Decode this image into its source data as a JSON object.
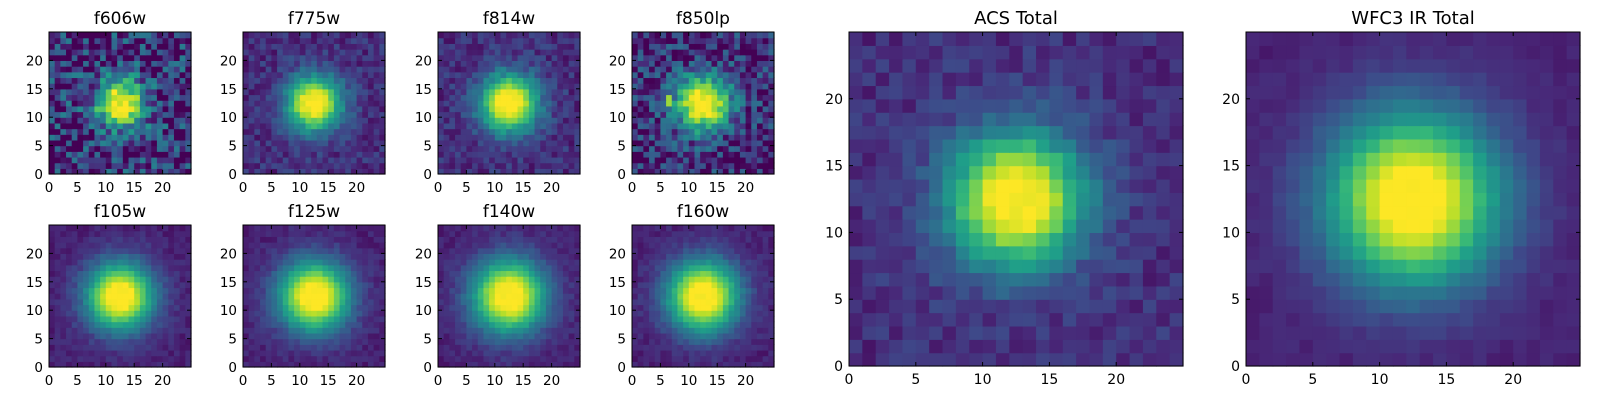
{
  "chart_data": [
    {
      "type": "heatmap",
      "title": "f606w",
      "grid": false,
      "xlim": [
        0,
        25
      ],
      "ylim": [
        0,
        25
      ],
      "xticks": [
        0,
        5,
        10,
        15,
        20
      ],
      "yticks": [
        0,
        5,
        10,
        15,
        20
      ],
      "source": {
        "center": [
          12,
          12
        ],
        "sigma": 3.0,
        "noise": 0.3,
        "background": 0.12
      }
    },
    {
      "type": "heatmap",
      "title": "f775w",
      "grid": false,
      "xlim": [
        0,
        25
      ],
      "ylim": [
        0,
        25
      ],
      "xticks": [
        0,
        5,
        10,
        15,
        20
      ],
      "yticks": [
        0,
        5,
        10,
        15,
        20
      ],
      "source": {
        "center": [
          12,
          12
        ],
        "sigma": 3.4,
        "noise": 0.1,
        "background": 0.12
      }
    },
    {
      "type": "heatmap",
      "title": "f814w",
      "grid": false,
      "xlim": [
        0,
        25
      ],
      "ylim": [
        0,
        25
      ],
      "xticks": [
        0,
        5,
        10,
        15,
        20
      ],
      "yticks": [
        0,
        5,
        10,
        15,
        20
      ],
      "source": {
        "center": [
          12,
          12
        ],
        "sigma": 3.6,
        "noise": 0.1,
        "background": 0.12
      }
    },
    {
      "type": "heatmap",
      "title": "f850lp",
      "grid": false,
      "xlim": [
        0,
        25
      ],
      "ylim": [
        0,
        25
      ],
      "xticks": [
        0,
        5,
        10,
        15,
        20
      ],
      "yticks": [
        0,
        5,
        10,
        15,
        20
      ],
      "source": {
        "center": [
          12,
          12
        ],
        "sigma": 3.4,
        "noise": 0.22,
        "background": 0.12
      },
      "spot": {
        "x": 6,
        "y": 12,
        "amplitude": 0.85
      }
    },
    {
      "type": "heatmap",
      "title": "f105w",
      "grid": false,
      "xlim": [
        0,
        25
      ],
      "ylim": [
        0,
        25
      ],
      "xticks": [
        0,
        5,
        10,
        15,
        20
      ],
      "yticks": [
        0,
        5,
        10,
        15,
        20
      ],
      "source": {
        "center": [
          12,
          12
        ],
        "sigma": 4.2,
        "noise": 0.05,
        "background": 0.08
      }
    },
    {
      "type": "heatmap",
      "title": "f125w",
      "grid": false,
      "xlim": [
        0,
        25
      ],
      "ylim": [
        0,
        25
      ],
      "xticks": [
        0,
        5,
        10,
        15,
        20
      ],
      "yticks": [
        0,
        5,
        10,
        15,
        20
      ],
      "source": {
        "center": [
          12,
          12
        ],
        "sigma": 4.4,
        "noise": 0.05,
        "background": 0.08
      }
    },
    {
      "type": "heatmap",
      "title": "f140w",
      "grid": false,
      "xlim": [
        0,
        25
      ],
      "ylim": [
        0,
        25
      ],
      "xticks": [
        0,
        5,
        10,
        15,
        20
      ],
      "yticks": [
        0,
        5,
        10,
        15,
        20
      ],
      "source": {
        "center": [
          12,
          12
        ],
        "sigma": 4.6,
        "noise": 0.05,
        "background": 0.08
      }
    },
    {
      "type": "heatmap",
      "title": "f160w",
      "grid": false,
      "xlim": [
        0,
        25
      ],
      "ylim": [
        0,
        25
      ],
      "xticks": [
        0,
        5,
        10,
        15,
        20
      ],
      "yticks": [
        0,
        5,
        10,
        15,
        20
      ],
      "source": {
        "center": [
          12,
          12
        ],
        "sigma": 4.5,
        "noise": 0.05,
        "background": 0.08
      }
    },
    {
      "type": "heatmap",
      "title": "ACS Total",
      "grid": false,
      "xlim": [
        0,
        25
      ],
      "ylim": [
        0,
        25
      ],
      "xticks": [
        0,
        5,
        10,
        15,
        20
      ],
      "yticks": [
        0,
        5,
        10,
        15,
        20
      ],
      "source": {
        "center": [
          12,
          12
        ],
        "sigma": 3.6,
        "noise": 0.08,
        "background": 0.12
      },
      "spot": {
        "x": 6,
        "y": 12,
        "amplitude": 0.28
      }
    },
    {
      "type": "heatmap",
      "title": "WFC3 IR Total",
      "grid": false,
      "xlim": [
        0,
        25
      ],
      "ylim": [
        0,
        25
      ],
      "xticks": [
        0,
        5,
        10,
        15,
        20
      ],
      "yticks": [
        0,
        5,
        10,
        15,
        20
      ],
      "source": {
        "center": [
          12,
          12
        ],
        "sigma": 4.6,
        "noise": 0.03,
        "background": 0.08
      }
    }
  ],
  "colormap": "viridis",
  "colors": {
    "viridis": [
      "#440154",
      "#482878",
      "#3e4989",
      "#31688e",
      "#26828e",
      "#1f9e89",
      "#35b779",
      "#6ece58",
      "#b5de2b",
      "#fde725"
    ],
    "axes": "#000000",
    "background": "#ffffff"
  }
}
